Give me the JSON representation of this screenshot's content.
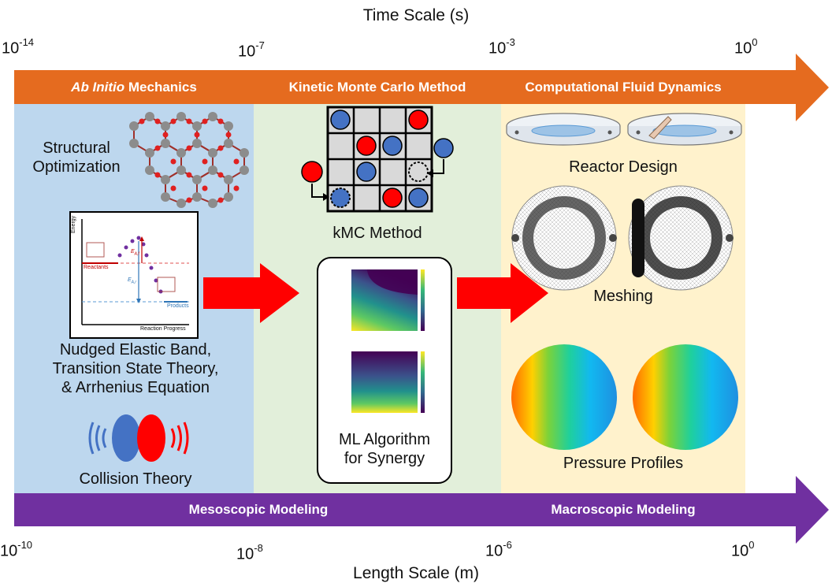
{
  "time_axis": {
    "title": "Time Scale (s)",
    "ticks": [
      {
        "base": "10",
        "exp": "-14"
      },
      {
        "base": "10",
        "exp": "-7"
      },
      {
        "base": "10",
        "exp": "-3"
      },
      {
        "base": "10",
        "exp": "0"
      }
    ]
  },
  "length_axis": {
    "title": "Length Scale (m)",
    "ticks": [
      {
        "base": "10",
        "exp": "-10"
      },
      {
        "base": "10",
        "exp": "-8"
      },
      {
        "base": "10",
        "exp": "-6"
      },
      {
        "base": "10",
        "exp": "0"
      }
    ]
  },
  "top_band": {
    "color": "#e56b1f",
    "sections": [
      {
        "italic": "Ab Initio",
        "text": " Mechanics"
      },
      {
        "italic": "",
        "text": "Kinetic Monte Carlo Method"
      },
      {
        "italic": "",
        "text": "Computational Fluid Dynamics"
      }
    ]
  },
  "bottom_band": {
    "color": "#7030a0",
    "sections": [
      "Mesoscopic Modeling",
      "Macroscopic Modeling"
    ]
  },
  "panels": {
    "ab_initio": {
      "color": "#bdd7ee",
      "structural_optimization": "Structural\nOptimization",
      "neb_caption": "Nudged Elastic Band,\nTransition State Theory,\n& Arrhenius Equation",
      "collision_theory": "Collision Theory",
      "energy_plot": {
        "ylabel": "Energy",
        "xlabel": "Reaction Progress",
        "reactants": "Reactants",
        "products": "Products",
        "ea_fwd": "E",
        "ea_fwd_sub": "A,f",
        "ea_rev": "E",
        "ea_rev_sub": "A,r"
      }
    },
    "kmc": {
      "color": "#e2efda",
      "kmc_method": "kMC Method",
      "ml_caption": "ML Algorithm\nfor Synergy"
    },
    "cfd": {
      "color": "#fff2cc",
      "reactor_design": "Reactor Design",
      "meshing": "Meshing",
      "pressure_profiles": "Pressure Profiles"
    }
  },
  "colors": {
    "arrow_red": "#ff0000",
    "particle_blue": "#4472c4",
    "particle_red": "#ff0000"
  }
}
